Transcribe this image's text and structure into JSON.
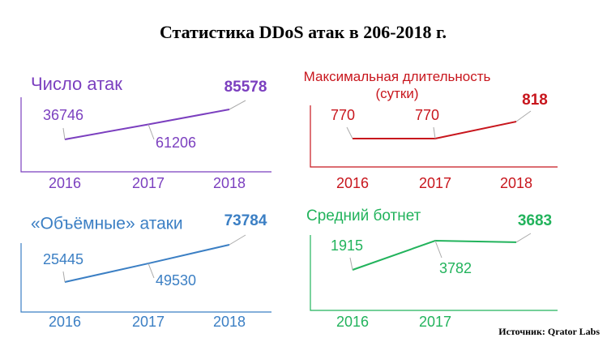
{
  "title": "Статистика DDoS атак в 206-2018 г.",
  "source": "Источник: Qrator Labs",
  "chart_data": [
    {
      "type": "line",
      "title": "Число атак",
      "categories": [
        "2016",
        "2017",
        "2018"
      ],
      "series": [
        {
          "color": "#7b3fbf",
          "values": [
            36746,
            61206,
            85578
          ]
        }
      ]
    },
    {
      "type": "line",
      "title": "Максимальная длительность (сутки)",
      "categories": [
        "2016",
        "2017",
        "2018"
      ],
      "series": [
        {
          "color": "#c8161d",
          "values": [
            770,
            770,
            818
          ]
        }
      ]
    },
    {
      "type": "line",
      "title": "«Объёмные» атаки",
      "categories": [
        "2016",
        "2017",
        "2018"
      ],
      "series": [
        {
          "color": "#3b7fc4",
          "values": [
            25445,
            49530,
            73784
          ]
        }
      ]
    },
    {
      "type": "line",
      "title": "Средний ботнет",
      "categories": [
        "2016",
        "2017",
        null
      ],
      "series": [
        {
          "color": "#22b35c",
          "values": [
            1915,
            3782,
            3683
          ]
        }
      ]
    }
  ]
}
